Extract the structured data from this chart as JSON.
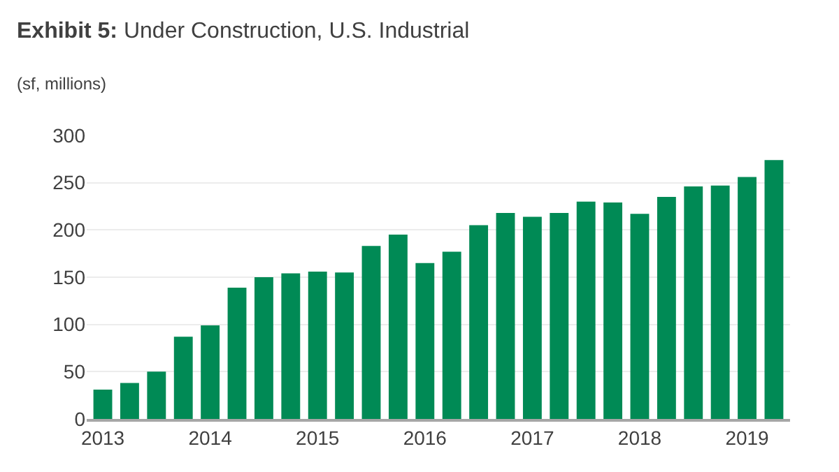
{
  "chart_data": {
    "type": "bar",
    "title": "Exhibit 5: Under Construction, U.S. Industrial",
    "subtitle": "(sf, millions)",
    "categories": [
      "2013",
      null,
      null,
      null,
      "2014",
      null,
      null,
      null,
      "2015",
      null,
      null,
      null,
      "2016",
      null,
      null,
      null,
      "2017",
      null,
      null,
      null,
      "2018",
      null,
      null,
      null,
      "2019",
      null
    ],
    "values": [
      31,
      38,
      50,
      87,
      99,
      139,
      150,
      154,
      156,
      155,
      183,
      195,
      165,
      177,
      205,
      218,
      214,
      218,
      230,
      229,
      217,
      235,
      246,
      247,
      256,
      274
    ],
    "color": "#008a55",
    "ylim": [
      0,
      300
    ],
    "yticks": [
      0,
      50,
      100,
      150,
      200,
      250,
      300
    ],
    "grid": "y",
    "legend": false
  }
}
